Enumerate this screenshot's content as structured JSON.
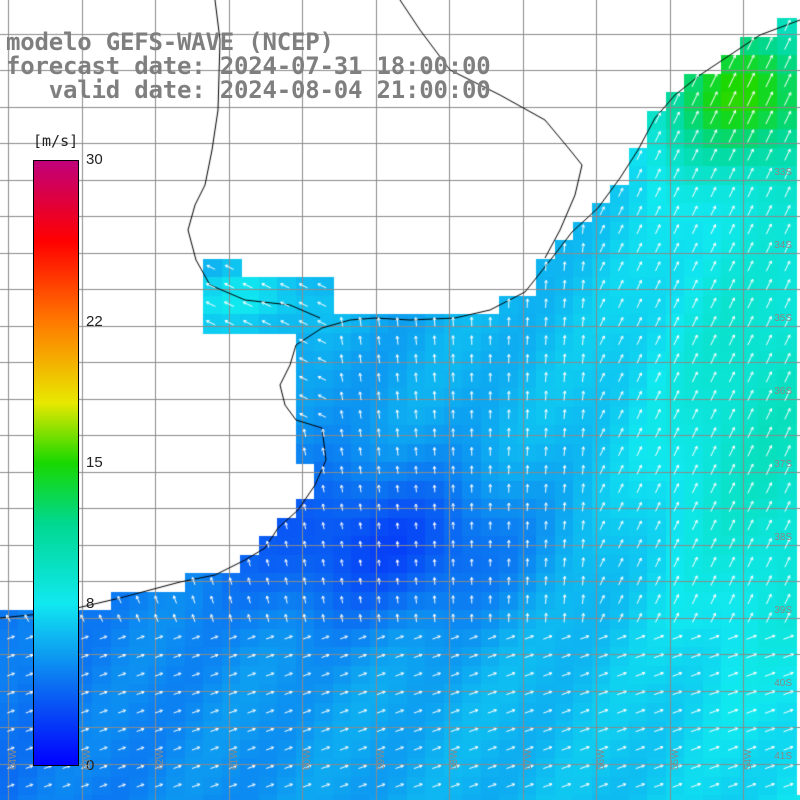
{
  "title": {
    "line1": "modelo GEFS-WAVE (NCEP)",
    "line2": "forecast date: 2024-07-31 18:00:00",
    "line3": "   valid date: 2024-08-04 21:00:00"
  },
  "colorbar": {
    "unit": "[m/s]",
    "min": 0,
    "max": 30,
    "tick_labels": [
      "30",
      "22",
      "15",
      "8",
      "0"
    ],
    "tick_values": [
      30,
      22,
      15,
      8,
      0
    ],
    "stops": [
      {
        "v": 0,
        "color": "#0000ff"
      },
      {
        "v": 4,
        "color": "#0b6ff2"
      },
      {
        "v": 8,
        "color": "#10e8f0"
      },
      {
        "v": 12,
        "color": "#00d890"
      },
      {
        "v": 15,
        "color": "#18d800"
      },
      {
        "v": 18,
        "color": "#e8e800"
      },
      {
        "v": 22,
        "color": "#ff7a00"
      },
      {
        "v": 26,
        "color": "#ff0000"
      },
      {
        "v": 30,
        "color": "#c0007a"
      }
    ]
  },
  "grid": {
    "lat_labels": [
      "33S",
      "34S",
      "35S",
      "36S",
      "37S",
      "38S",
      "39S",
      "40S",
      "41S"
    ],
    "lon_labels": [
      "64W",
      "63W",
      "62W",
      "61W",
      "60W",
      "59W",
      "58W",
      "57W",
      "56W",
      "55W",
      "54W"
    ]
  },
  "colors": {
    "land": "#ffffff",
    "coast": "#000000",
    "grid": "#8a8a8a",
    "arrows": "#ffffff",
    "title": "#7f7f7f"
  }
}
